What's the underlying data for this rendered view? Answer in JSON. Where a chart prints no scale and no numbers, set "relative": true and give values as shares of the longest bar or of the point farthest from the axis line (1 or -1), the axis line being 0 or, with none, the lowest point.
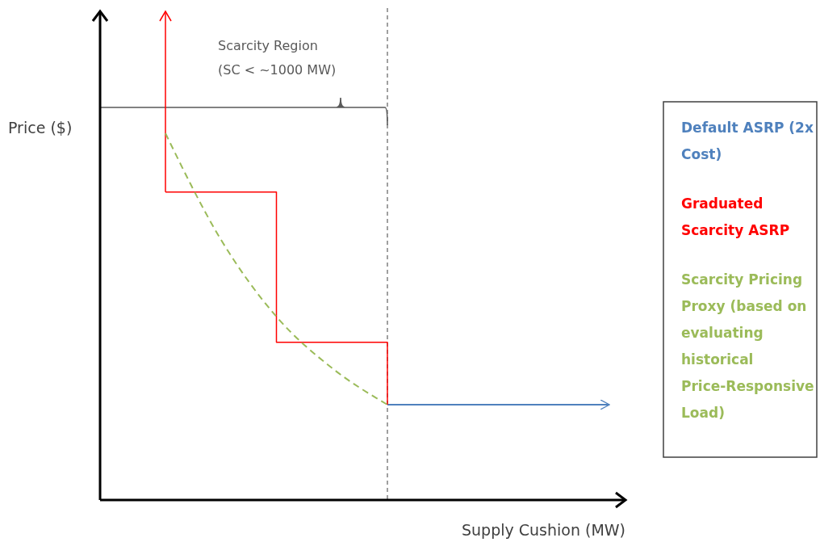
{
  "chart_data": {
    "type": "line",
    "relative": true,
    "xlabel": "Supply Cushion (MW)",
    "ylabel": "Price ($)",
    "categories": [
      null,
      null,
      null,
      null,
      null,
      null,
      null,
      null,
      null
    ],
    "series": [
      {
        "name": "Default ASRP (2x Cost)",
        "color": "#4f81bd",
        "values": [
          null,
          null,
          null,
          null,
          0.26,
          0.26,
          0.26,
          0.26,
          0.26
        ]
      },
      {
        "name": "Graduated Scarcity ASRP",
        "type": "step",
        "color": "#ff0000",
        "values": [
          0.84,
          0.84,
          0.43,
          0.43,
          0.26,
          null,
          null,
          null,
          null
        ]
      },
      {
        "name": "Scarcity Pricing Proxy (based on evaluating historical Price-Responsive Load)",
        "color": "#9bbb59",
        "line_style": "dashed",
        "values": [
          1,
          0.71,
          0.5,
          0.36,
          0.26,
          null,
          null,
          null,
          null
        ]
      }
    ],
    "annotations": [
      "Scarcity Region (SC < ~1000 MW)"
    ],
    "legend": "right",
    "grid": false
  }
}
